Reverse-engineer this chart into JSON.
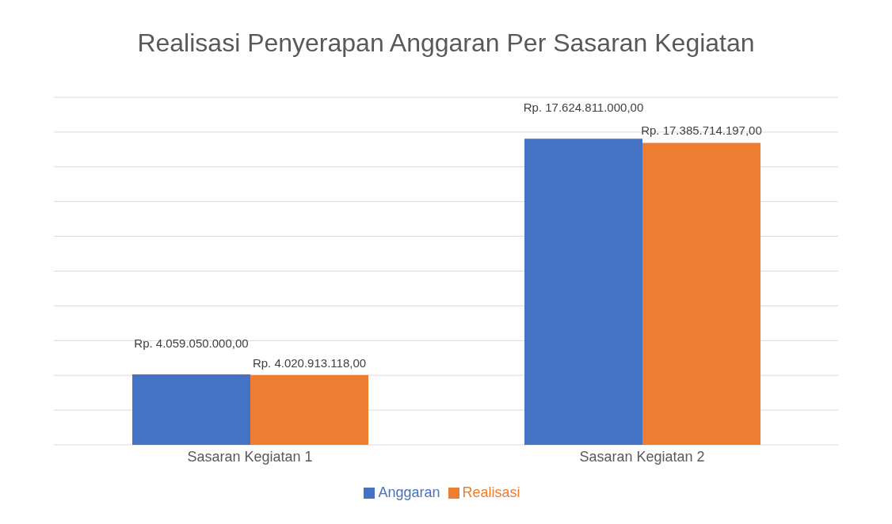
{
  "chart_data": {
    "type": "bar",
    "title": "Realisasi Penyerapan Anggaran Per Sasaran Kegiatan",
    "categories": [
      "Sasaran Kegiatan 1",
      "Sasaran Kegiatan 2"
    ],
    "series": [
      {
        "name": "Anggaran",
        "color": "#4472c4",
        "values": [
          4059050000,
          17624811000
        ],
        "value_labels": [
          "Rp. 4.059.050.000,00",
          "Rp. 17.624.811.000,00"
        ]
      },
      {
        "name": "Realisasi",
        "color": "#ed7d31",
        "values": [
          4020913118,
          17385714197
        ],
        "value_labels": [
          "Rp. 4.020.913.118,00",
          "Rp. 17.385.714.197,00"
        ]
      }
    ],
    "grid": "y",
    "legend": "bottom"
  }
}
